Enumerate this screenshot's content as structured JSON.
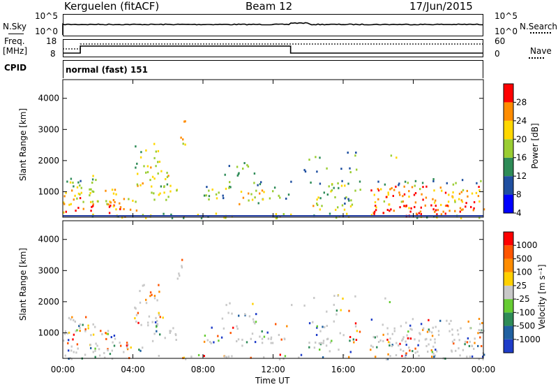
{
  "header": {
    "station": "Kerguelen (fitACF)",
    "beam": "Beam 12",
    "date": "17/Jun/2015"
  },
  "panels": {
    "nsky_label": "N.Sky",
    "nsearch_label": "N.Search",
    "freq_label": "Freq.",
    "freq_unit": "[MHz]",
    "nave_label": "Nave",
    "cpid_label": "CPID",
    "cpid_value": "normal (fast) 151",
    "noise_ticks_left": [
      "10^5",
      "10^0"
    ],
    "noise_ticks_right": [
      "10^5",
      "10^0"
    ],
    "freq_ticks": [
      "18",
      "8"
    ],
    "nave_ticks": [
      "60",
      "0"
    ]
  },
  "chart_data": [
    {
      "type": "heatmap",
      "name": "power",
      "ylabel": "Slant Range [km]",
      "yticks": [
        "4000",
        "3000",
        "2000",
        "1000"
      ],
      "colorbar_label": "Power [dB]",
      "colorbar_ticks": [
        "28",
        "24",
        "20",
        "16",
        "12",
        "8",
        "4"
      ],
      "colors": [
        "#0000ff",
        "#1f4fa0",
        "#2e8b57",
        "#9acd32",
        "#ffd700",
        "#ff8c00",
        "#ff0000"
      ],
      "ylim": [
        180,
        4600
      ],
      "xlim_hours": [
        0,
        24
      ]
    },
    {
      "type": "heatmap",
      "name": "velocity",
      "ylabel": "Slant Range [km]",
      "yticks": [
        "4000",
        "3000",
        "2000",
        "1000"
      ],
      "colorbar_label": "Velocity [m s⁻¹]",
      "colorbar_ticks": [
        "1000",
        "500",
        "100",
        "25",
        "-25",
        "-100",
        "-500",
        "-1000"
      ],
      "colors": [
        "#1e3cc8",
        "#2060a0",
        "#2e8b57",
        "#66cc33",
        "#c8c8c8",
        "#ffd000",
        "#ff8c00",
        "#ff5500",
        "#ff0000"
      ],
      "ylim": [
        180,
        4600
      ],
      "xlim_hours": [
        0,
        24
      ]
    }
  ],
  "xaxis": {
    "ticks": [
      "00:00",
      "04:00",
      "08:00",
      "12:00",
      "16:00",
      "20:00",
      "00:00"
    ],
    "label": "Time UT"
  }
}
